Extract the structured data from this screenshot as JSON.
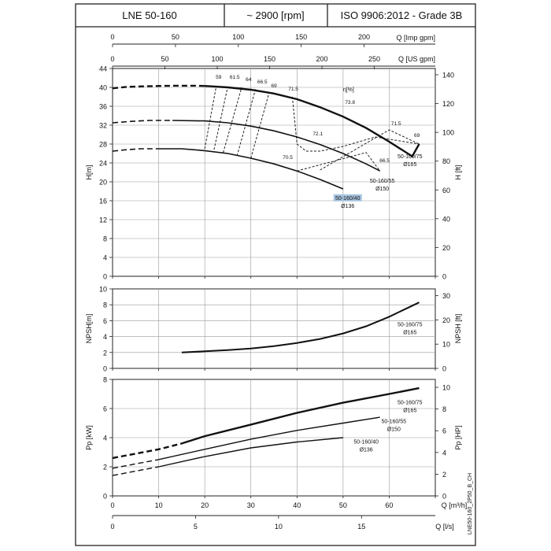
{
  "header": {
    "model": "LNE 50-160",
    "speed": "~ 2900 [rpm]",
    "standard": "ISO 9906:2012 - Grade 3B"
  },
  "side_note": "LNE50-160_2P50_B_CH",
  "axes": {
    "q_imp_label": "Q [Imp gpm]",
    "q_imp_ticks": [
      "0",
      "50",
      "100",
      "150",
      "200"
    ],
    "q_us_label": "Q [US gpm]",
    "q_us_ticks": [
      "0",
      "50",
      "100",
      "150",
      "200",
      "250"
    ],
    "q_m3h_label": "Q [m³/h]",
    "q_m3h_ticks": [
      "0",
      "10",
      "20",
      "30",
      "40",
      "50",
      "60"
    ],
    "q_ls_label": "Q [l/s]",
    "q_ls_ticks": [
      "0",
      "5",
      "10",
      "15"
    ],
    "h_m_label": "H[m]",
    "h_m_ticks": [
      "0",
      "4",
      "8",
      "12",
      "16",
      "20",
      "24",
      "28",
      "32",
      "36",
      "40",
      "44"
    ],
    "h_ft_label": "H [ft]",
    "h_ft_ticks": [
      "0",
      "20",
      "40",
      "60",
      "80",
      "100",
      "120",
      "140"
    ],
    "npsh_m_label": "NPSH[m]",
    "npsh_m_ticks": [
      "0",
      "2",
      "4",
      "6",
      "8",
      "10"
    ],
    "npsh_ft_label": "NPSH [ft]",
    "npsh_ft_ticks": [
      "0",
      "10",
      "20",
      "30"
    ],
    "p_kw_label": "Pp [kW]",
    "p_kw_ticks": [
      "0",
      "2",
      "4",
      "6",
      "8"
    ],
    "p_hp_label": "Pp [HP]",
    "p_hp_ticks": [
      "0",
      "2",
      "4",
      "6",
      "8",
      "10"
    ],
    "eta_label": "η[%]"
  },
  "chart_data": [
    {
      "type": "line",
      "title": "",
      "xlabel": "Q [m³/h]",
      "ylabel": "H[m]",
      "xlim": [
        0,
        70
      ],
      "ylim": [
        0,
        44
      ],
      "grid": true,
      "series": [
        {
          "name": "50-160/75 Ø165",
          "line1": "50-160/75",
          "line2": "Ø165",
          "dashed_x": [
            0,
            3,
            6,
            10,
            14,
            18,
            20
          ],
          "dashed_y": [
            39.8,
            40.1,
            40.2,
            40.3,
            40.35,
            40.35,
            40.3
          ],
          "solid_x": [
            20,
            25,
            30,
            35,
            40,
            45,
            50,
            55,
            60,
            65,
            66.5
          ],
          "solid_y": [
            40.3,
            40.0,
            39.5,
            38.7,
            37.5,
            35.8,
            33.8,
            31.4,
            28.5,
            25.4,
            28.0
          ]
        },
        {
          "name": "50-160/55 Ø150",
          "line1": "50-160/55",
          "line2": "Ø150",
          "dashed_x": [
            0,
            4,
            8,
            13
          ],
          "dashed_y": [
            32.5,
            32.8,
            33.0,
            33.0
          ],
          "solid_x": [
            13,
            20,
            25,
            30,
            35,
            40,
            45,
            50,
            55,
            58
          ],
          "solid_y": [
            33.0,
            32.9,
            32.5,
            31.8,
            30.8,
            29.5,
            27.9,
            26.0,
            23.8,
            22.3
          ]
        },
        {
          "name": "50-160/40 Ø136",
          "line1": "50-160/40",
          "line2": "Ø136",
          "dashed_x": [
            0,
            3,
            6,
            10
          ],
          "dashed_y": [
            26.5,
            26.8,
            27.0,
            27.0
          ],
          "solid_x": [
            10,
            15,
            20,
            25,
            30,
            35,
            40,
            45,
            50
          ],
          "solid_y": [
            27.0,
            27.0,
            26.6,
            26.0,
            25.0,
            23.8,
            22.3,
            20.5,
            18.5
          ]
        }
      ],
      "efficiency_labels": [
        {
          "text": "59",
          "x": 23,
          "y": 41.8
        },
        {
          "text": "61.5",
          "x": 26.5,
          "y": 41.8
        },
        {
          "text": "64",
          "x": 29.5,
          "y": 41.3
        },
        {
          "text": "66.5",
          "x": 32.5,
          "y": 40.8
        },
        {
          "text": "69",
          "x": 35,
          "y": 40.0
        },
        {
          "text": "71.5",
          "x": 39.2,
          "y": 39.3
        },
        {
          "text": "73.8",
          "x": 51.5,
          "y": 36.5
        },
        {
          "text": "71.5",
          "x": 61.5,
          "y": 32.0
        },
        {
          "text": "69",
          "x": 66,
          "y": 29.5
        },
        {
          "text": "72.1",
          "x": 44.5,
          "y": 29.8
        },
        {
          "text": "70.5",
          "x": 38,
          "y": 24.8
        },
        {
          "text": "66.5",
          "x": 59,
          "y": 24.2
        }
      ],
      "efficiency_lines": [
        {
          "x": [
            20,
            22.5
          ],
          "y": [
            27.0,
            40.3
          ]
        },
        {
          "x": [
            22,
            25
          ],
          "y": [
            26.8,
            40.2
          ]
        },
        {
          "x": [
            24,
            28
          ],
          "y": [
            26.2,
            40.0
          ]
        },
        {
          "x": [
            27,
            31
          ],
          "y": [
            25.5,
            39.6
          ]
        },
        {
          "x": [
            30,
            34
          ],
          "y": [
            25.0,
            39.0
          ]
        },
        {
          "x": [
            39,
            40,
            42,
            45,
            50,
            57,
            66.5
          ],
          "y": [
            38.0,
            28.0,
            26.5,
            26.5,
            27.5,
            29.5,
            28.0
          ]
        },
        {
          "x": [
            45,
            60,
            66.5
          ],
          "y": [
            22.5,
            31.0,
            28.0
          ]
        },
        {
          "x": [
            40,
            55,
            58
          ],
          "y": [
            22.3,
            26.2,
            22.3
          ]
        }
      ]
    },
    {
      "type": "line",
      "title": "",
      "xlabel": "Q [m³/h]",
      "ylabel": "NPSH[m]",
      "xlim": [
        0,
        70
      ],
      "ylim": [
        0,
        10
      ],
      "grid": true,
      "series": [
        {
          "name": "50-160/75 Ø165",
          "line1": "50-160/75",
          "line2": "Ø165",
          "x": [
            15,
            20,
            25,
            30,
            35,
            40,
            45,
            50,
            55,
            60,
            64,
            66.5
          ],
          "y": [
            2.0,
            2.15,
            2.3,
            2.5,
            2.8,
            3.2,
            3.7,
            4.4,
            5.3,
            6.5,
            7.6,
            8.3
          ]
        }
      ]
    },
    {
      "type": "line",
      "title": "",
      "xlabel": "Q [m³/h]",
      "ylabel": "Pp [kW]",
      "xlim": [
        0,
        70
      ],
      "ylim": [
        0,
        8
      ],
      "grid": true,
      "series": [
        {
          "name": "50-160/75 Ø165",
          "line1": "50-160/75",
          "line2": "Ø165",
          "dashed_x": [
            0,
            5,
            10,
            15
          ],
          "dashed_y": [
            2.6,
            2.9,
            3.2,
            3.6
          ],
          "solid_x": [
            15,
            20,
            30,
            40,
            50,
            60,
            66.5
          ],
          "solid_y": [
            3.6,
            4.1,
            4.9,
            5.7,
            6.4,
            7.0,
            7.4
          ]
        },
        {
          "name": "50-160/55 Ø150",
          "line1": "50-160/55",
          "line2": "Ø150",
          "dashed_x": [
            0,
            5,
            10
          ],
          "dashed_y": [
            1.9,
            2.2,
            2.5
          ],
          "solid_x": [
            10,
            20,
            30,
            40,
            50,
            58
          ],
          "solid_y": [
            2.5,
            3.2,
            3.9,
            4.5,
            5.0,
            5.4
          ]
        },
        {
          "name": "50-160/40 Ø136",
          "line1": "50-160/40",
          "line2": "Ø136",
          "dashed_x": [
            0,
            5,
            10
          ],
          "dashed_y": [
            1.4,
            1.7,
            2.0
          ],
          "solid_x": [
            10,
            20,
            30,
            40,
            50
          ],
          "solid_y": [
            2.0,
            2.7,
            3.3,
            3.7,
            4.0
          ]
        }
      ]
    }
  ]
}
